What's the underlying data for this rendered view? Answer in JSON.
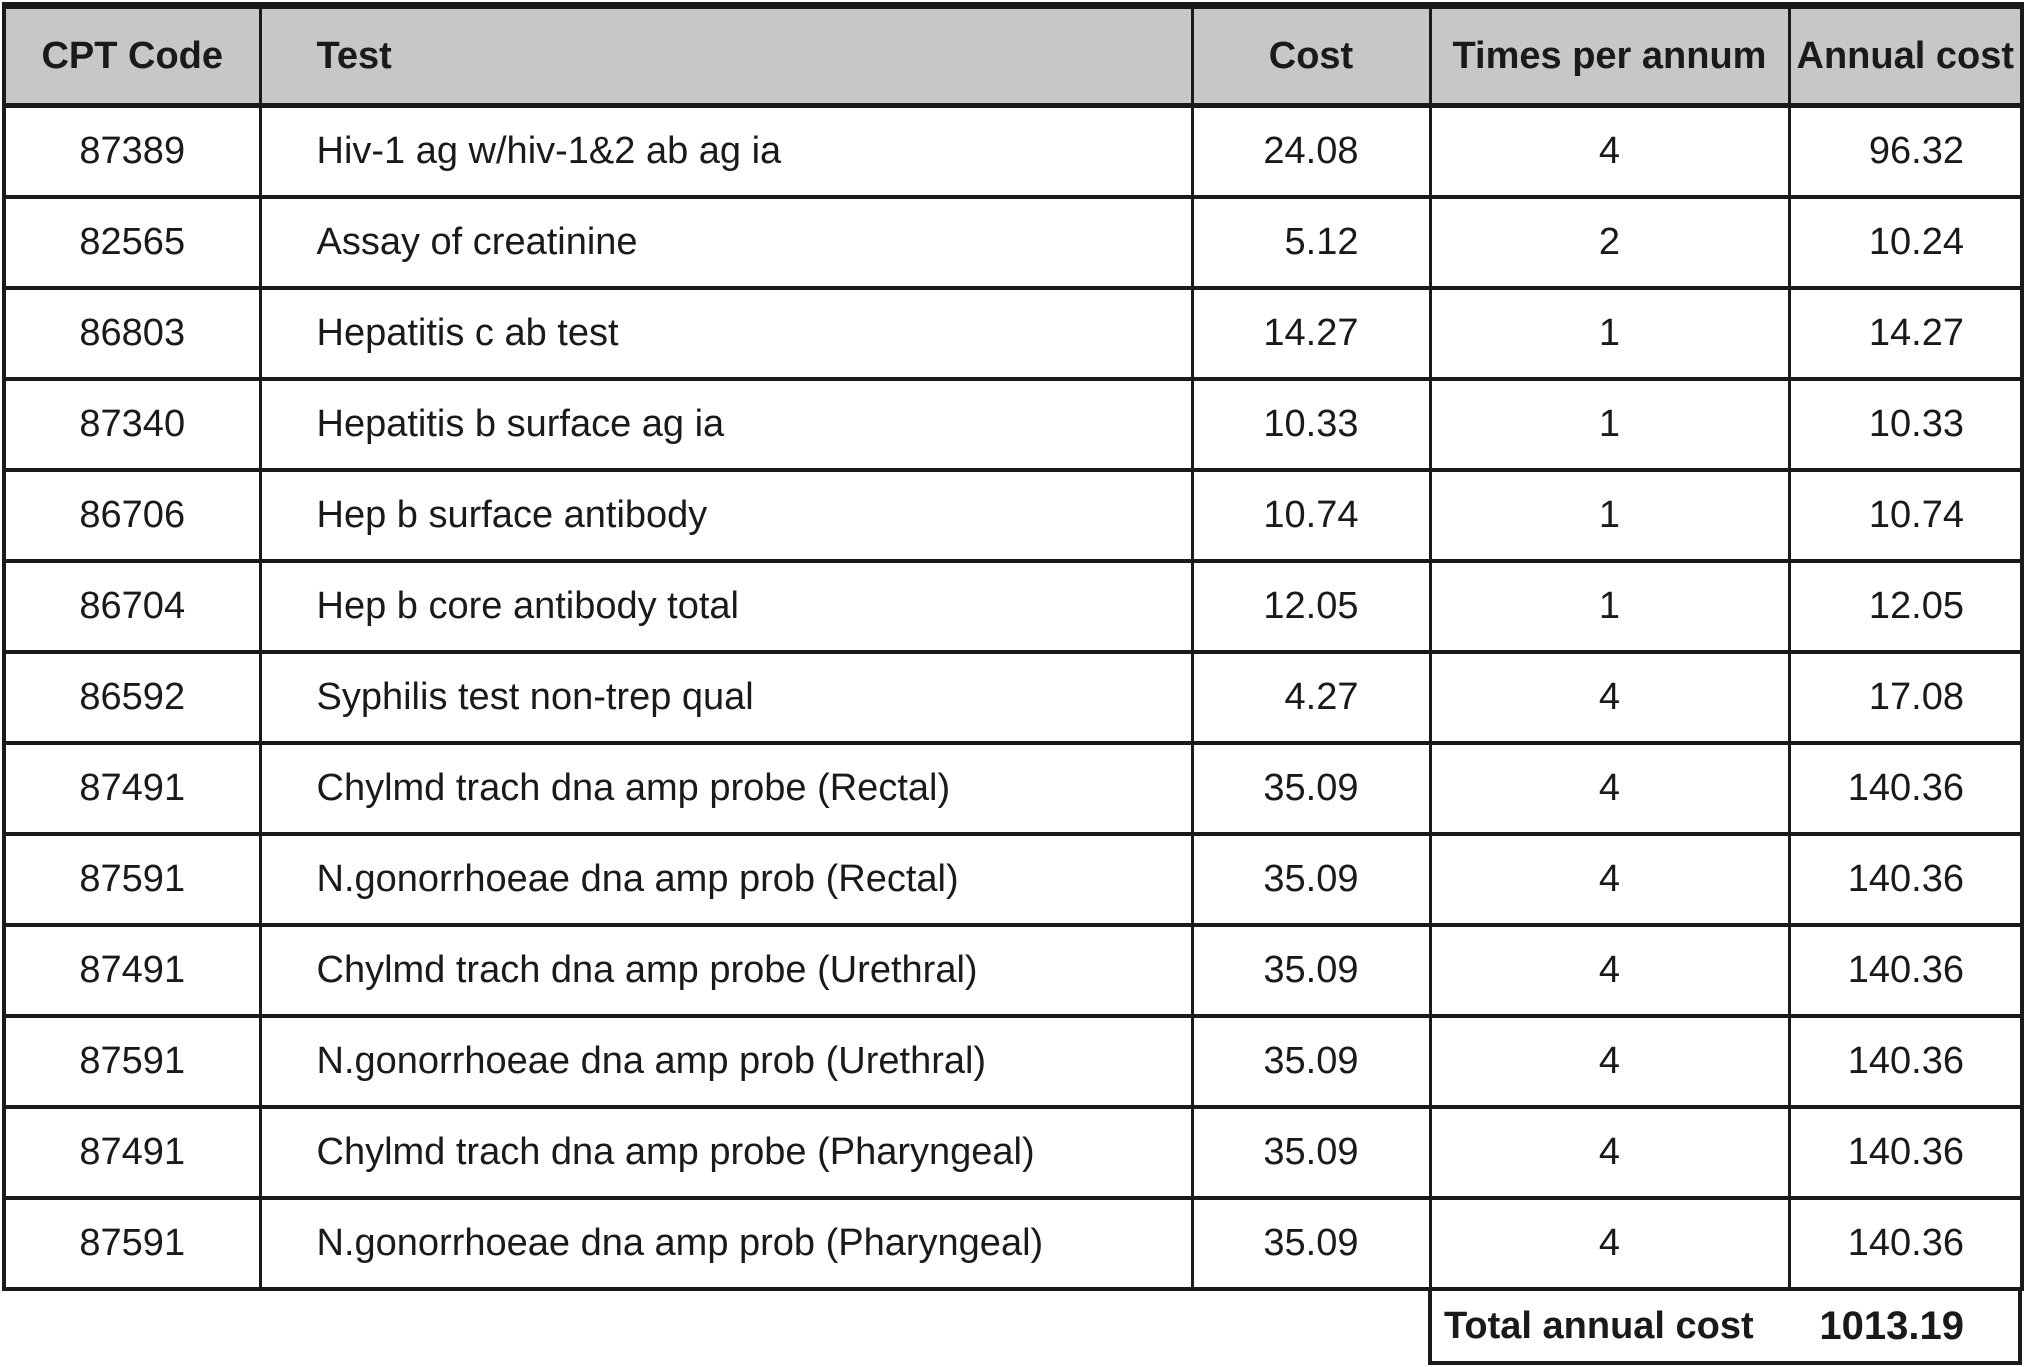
{
  "chart_data": {
    "type": "table",
    "title": "",
    "columns": [
      "CPT Code",
      "Test",
      "Cost",
      "Times per annum",
      "Annual cost"
    ],
    "rows": [
      {
        "code": "87389",
        "test": "Hiv-1 ag w/hiv-1&2 ab ag ia",
        "cost": "24.08",
        "times": "4",
        "annual": "96.32"
      },
      {
        "code": "82565",
        "test": "Assay of creatinine",
        "cost": "5.12",
        "times": "2",
        "annual": "10.24"
      },
      {
        "code": "86803",
        "test": "Hepatitis c ab test",
        "cost": "14.27",
        "times": "1",
        "annual": "14.27"
      },
      {
        "code": "87340",
        "test": "Hepatitis b surface ag ia",
        "cost": "10.33",
        "times": "1",
        "annual": "10.33"
      },
      {
        "code": "86706",
        "test": "Hep b surface antibody",
        "cost": "10.74",
        "times": "1",
        "annual": "10.74"
      },
      {
        "code": "86704",
        "test": "Hep b core antibody total",
        "cost": "12.05",
        "times": "1",
        "annual": "12.05"
      },
      {
        "code": "86592",
        "test": "Syphilis test non-trep qual",
        "cost": "4.27",
        "times": "4",
        "annual": "17.08"
      },
      {
        "code": "87491",
        "test": "Chylmd trach dna amp probe (Rectal)",
        "cost": "35.09",
        "times": "4",
        "annual": "140.36"
      },
      {
        "code": "87591",
        "test": "N.gonorrhoeae dna amp prob (Rectal)",
        "cost": "35.09",
        "times": "4",
        "annual": "140.36"
      },
      {
        "code": "87491",
        "test": "Chylmd trach dna amp probe (Urethral)",
        "cost": "35.09",
        "times": "4",
        "annual": "140.36"
      },
      {
        "code": "87591",
        "test": "N.gonorrhoeae dna amp prob (Urethral)",
        "cost": "35.09",
        "times": "4",
        "annual": "140.36"
      },
      {
        "code": "87491",
        "test": "Chylmd trach dna amp probe (Pharyngeal)",
        "cost": "35.09",
        "times": "4",
        "annual": "140.36"
      },
      {
        "code": "87591",
        "test": "N.gonorrhoeae dna amp prob (Pharyngeal)",
        "cost": "35.09",
        "times": "4",
        "annual": "140.36"
      }
    ],
    "footer": {
      "label": "Total annual cost",
      "value": "1013.19"
    },
    "layout_hints": {
      "header_background": "#c7c7c7",
      "border_color": "#1a1a1a",
      "grid": "on",
      "cost_alignment": "right",
      "annual_alignment": "right"
    }
  }
}
